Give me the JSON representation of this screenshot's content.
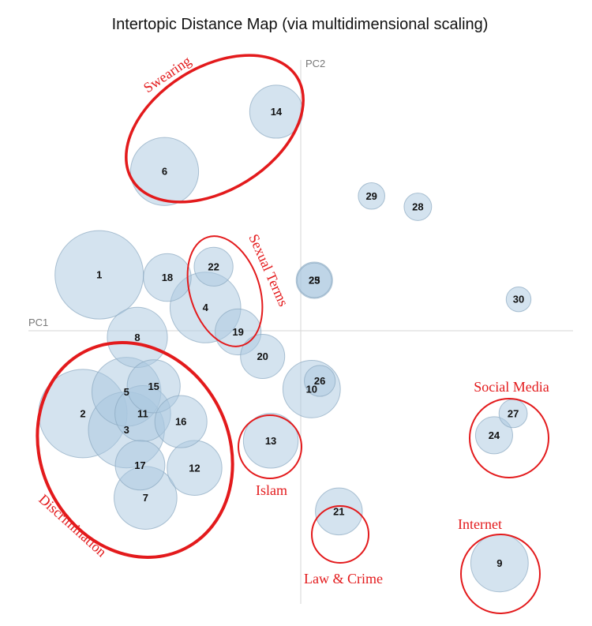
{
  "chart_data": {
    "type": "scatter",
    "title": "Intertopic Distance Map (via multidimensional scaling)",
    "xlabel": "PC1",
    "ylabel": "PC2",
    "xlim": [
      -1,
      1
    ],
    "ylim": [
      -1,
      1
    ],
    "grid": false,
    "point_color": "#a9c7df",
    "point_stroke": "#8aa8c0",
    "annotation_color": "#e31a1c",
    "points": [
      {
        "label": "1",
        "x": -0.74,
        "y": 0.21,
        "size": 1.0
      },
      {
        "label": "2",
        "x": -0.8,
        "y": -0.3,
        "size": 1.0
      },
      {
        "label": "3",
        "x": -0.64,
        "y": -0.36,
        "size": 0.86
      },
      {
        "label": "4",
        "x": -0.35,
        "y": 0.09,
        "size": 0.8
      },
      {
        "label": "5",
        "x": -0.64,
        "y": -0.22,
        "size": 0.78
      },
      {
        "label": "6",
        "x": -0.5,
        "y": 0.59,
        "size": 0.77
      },
      {
        "label": "7",
        "x": -0.57,
        "y": -0.61,
        "size": 0.71
      },
      {
        "label": "8",
        "x": -0.6,
        "y": -0.02,
        "size": 0.68
      },
      {
        "label": "9",
        "x": 0.73,
        "y": -0.85,
        "size": 0.65
      },
      {
        "label": "10",
        "x": 0.04,
        "y": -0.21,
        "size": 0.65
      },
      {
        "label": "11",
        "x": -0.58,
        "y": -0.3,
        "size": 0.63
      },
      {
        "label": "12",
        "x": -0.39,
        "y": -0.5,
        "size": 0.62
      },
      {
        "label": "13",
        "x": -0.11,
        "y": -0.4,
        "size": 0.62
      },
      {
        "label": "14",
        "x": -0.09,
        "y": 0.81,
        "size": 0.6
      },
      {
        "label": "15",
        "x": -0.54,
        "y": -0.2,
        "size": 0.6
      },
      {
        "label": "16",
        "x": -0.44,
        "y": -0.33,
        "size": 0.59
      },
      {
        "label": "17",
        "x": -0.59,
        "y": -0.49,
        "size": 0.56
      },
      {
        "label": "18",
        "x": -0.49,
        "y": 0.2,
        "size": 0.54
      },
      {
        "label": "19",
        "x": -0.23,
        "y": 0.0,
        "size": 0.52
      },
      {
        "label": "20",
        "x": -0.14,
        "y": -0.09,
        "size": 0.5
      },
      {
        "label": "21",
        "x": 0.14,
        "y": -0.66,
        "size": 0.53
      },
      {
        "label": "22",
        "x": -0.32,
        "y": 0.24,
        "size": 0.44
      },
      {
        "label": "23",
        "x": 0.05,
        "y": 0.19,
        "size": 0.41
      },
      {
        "label": "24",
        "x": 0.71,
        "y": -0.38,
        "size": 0.42
      },
      {
        "label": "25",
        "x": 0.05,
        "y": 0.19,
        "size": 0.39
      },
      {
        "label": "26",
        "x": 0.07,
        "y": -0.18,
        "size": 0.35
      },
      {
        "label": "27",
        "x": 0.78,
        "y": -0.3,
        "size": 0.32
      },
      {
        "label": "28",
        "x": 0.43,
        "y": 0.46,
        "size": 0.31
      },
      {
        "label": "29",
        "x": 0.26,
        "y": 0.5,
        "size": 0.3
      },
      {
        "label": "30",
        "x": 0.8,
        "y": 0.12,
        "size": 0.28
      }
    ],
    "annotations": [
      {
        "text": "Swearing"
      },
      {
        "text": "Sexual Terms"
      },
      {
        "text": "Discrimination"
      },
      {
        "text": "Islam"
      },
      {
        "text": "Law & Crime"
      },
      {
        "text": "Social Media"
      },
      {
        "text": "Internet"
      }
    ]
  }
}
